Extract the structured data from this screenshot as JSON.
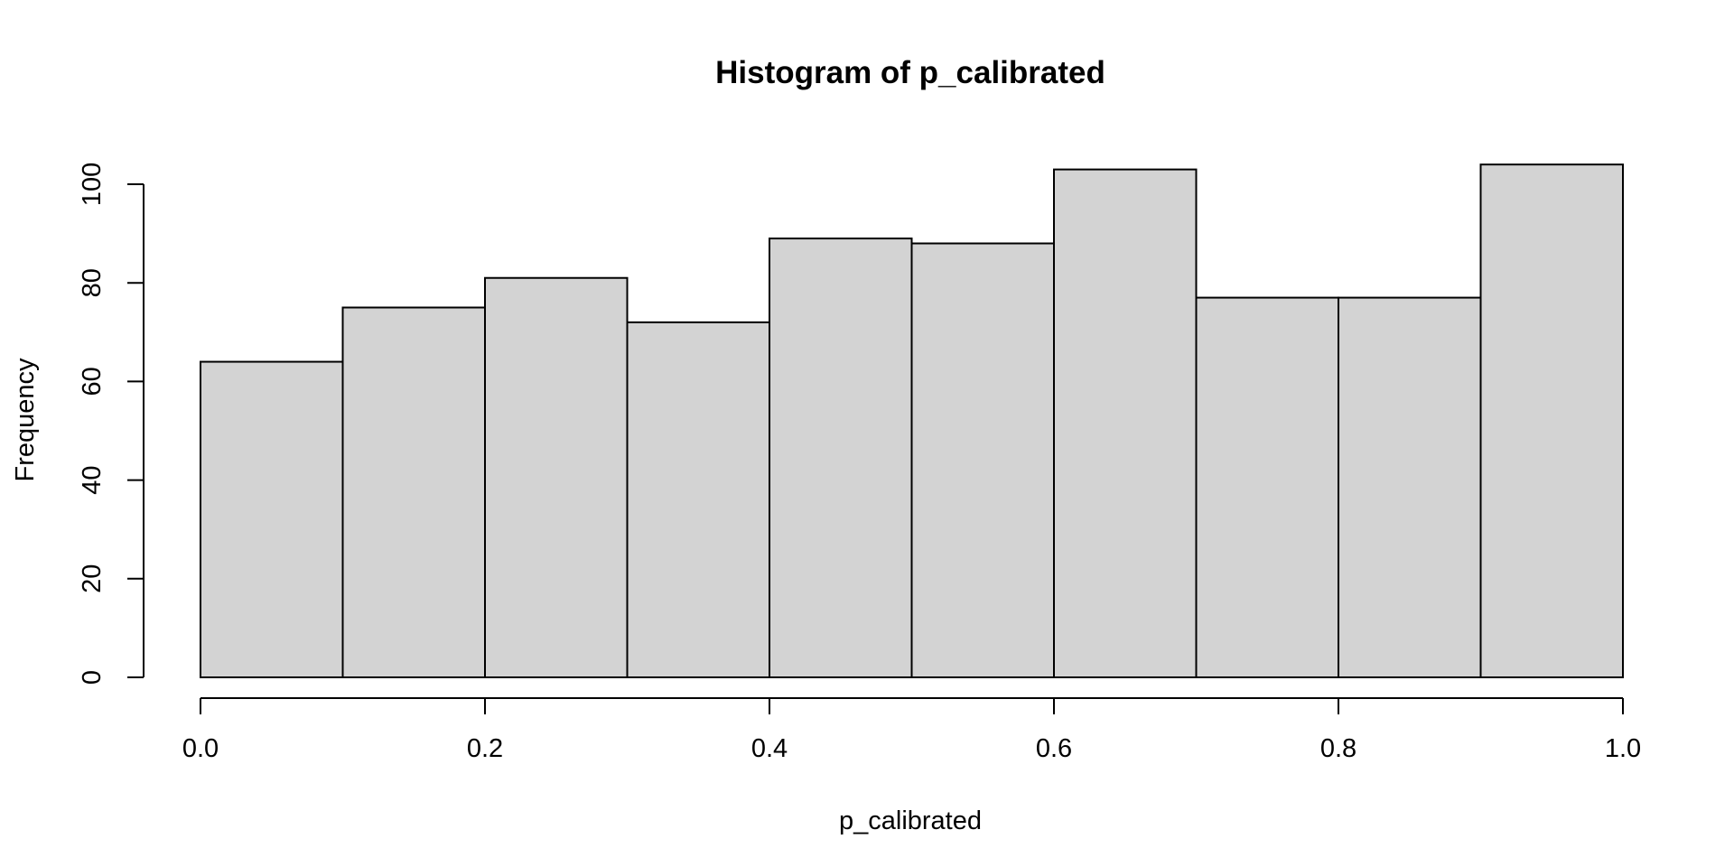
{
  "chart_data": {
    "type": "bar",
    "title": "Histogram of p_calibrated",
    "xlabel": "p_calibrated",
    "ylabel": "Frequency",
    "bins": [
      {
        "start": 0.0,
        "end": 0.1,
        "count": 64
      },
      {
        "start": 0.1,
        "end": 0.2,
        "count": 75
      },
      {
        "start": 0.2,
        "end": 0.3,
        "count": 81
      },
      {
        "start": 0.3,
        "end": 0.4,
        "count": 72
      },
      {
        "start": 0.4,
        "end": 0.5,
        "count": 89
      },
      {
        "start": 0.5,
        "end": 0.6,
        "count": 88
      },
      {
        "start": 0.6,
        "end": 0.7,
        "count": 103
      },
      {
        "start": 0.7,
        "end": 0.8,
        "count": 77
      },
      {
        "start": 0.8,
        "end": 0.9,
        "count": 77
      },
      {
        "start": 0.9,
        "end": 1.0,
        "count": 104
      }
    ],
    "xlim": [
      0.0,
      1.0
    ],
    "ylim": [
      0,
      100
    ],
    "xticks": [
      "0.0",
      "0.2",
      "0.4",
      "0.6",
      "0.8",
      "1.0"
    ],
    "yticks": [
      "0",
      "20",
      "40",
      "60",
      "80",
      "100"
    ],
    "grid": false,
    "bar_color": "#d3d3d3"
  }
}
